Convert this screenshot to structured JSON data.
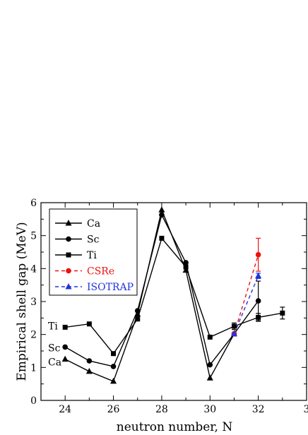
{
  "chart_data": {
    "type": "line",
    "xlabel": "neutron number, N",
    "ylabel": "Empirical shell gap (MeV)",
    "xlim": [
      23,
      34
    ],
    "ylim": [
      0,
      6
    ],
    "x_ticks": [
      "24",
      "26",
      "28",
      "30",
      "32",
      "3"
    ],
    "y_ticks": [
      "0",
      "1",
      "2",
      "3",
      "4",
      "5",
      "6"
    ],
    "legend_position": "top-left",
    "grid": false,
    "series": [
      {
        "name": "Ca",
        "marker": "triangle",
        "color": "#000000",
        "dashed": false,
        "x": [
          24,
          25,
          26,
          27,
          28,
          29,
          30,
          31
        ],
        "y": [
          1.25,
          0.88,
          0.58,
          2.62,
          5.78,
          3.95,
          0.68,
          2.02
        ]
      },
      {
        "name": "Sc",
        "marker": "circle",
        "color": "#000000",
        "dashed": false,
        "x": [
          24,
          25,
          26,
          27,
          28,
          29,
          30,
          31,
          32
        ],
        "y": [
          1.62,
          1.2,
          1.03,
          2.72,
          5.63,
          4.18,
          1.08,
          2.02,
          3.02
        ],
        "err": [
          0,
          0,
          0,
          0,
          0,
          0,
          0,
          0,
          0.6
        ]
      },
      {
        "name": "Ti",
        "marker": "square",
        "color": "#000000",
        "dashed": false,
        "x": [
          24,
          25,
          26,
          27,
          28,
          29,
          30,
          31,
          32,
          33
        ],
        "y": [
          2.22,
          2.32,
          1.42,
          2.47,
          4.92,
          4.05,
          1.92,
          2.25,
          2.52,
          2.65
        ],
        "err": [
          0,
          0,
          0,
          0,
          0,
          0,
          0,
          0.1,
          0.12,
          0.18
        ]
      },
      {
        "name": "CSRe",
        "marker": "circle",
        "color": "#ee1111",
        "dashed": true,
        "x": [
          31,
          32
        ],
        "y": [
          2.02,
          4.42
        ],
        "err": [
          0,
          0.5
        ]
      },
      {
        "name": "ISOTRAP",
        "marker": "triangle",
        "color": "#2233dd",
        "dashed": true,
        "x": [
          31,
          32
        ],
        "y": [
          2.02,
          3.78
        ],
        "err": [
          0,
          0.08
        ]
      }
    ],
    "side_labels": [
      {
        "text": "Ti",
        "y": 2.22
      },
      {
        "text": "Sc",
        "y": 1.62
      },
      {
        "text": "Ca",
        "y": 1.25
      }
    ]
  }
}
